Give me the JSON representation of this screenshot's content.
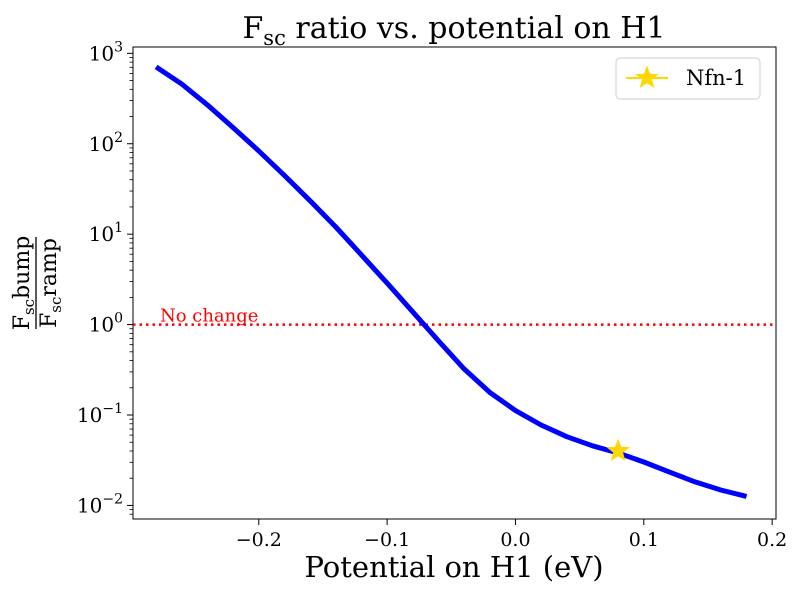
{
  "chart_data": {
    "type": "line",
    "title": {
      "base": "F",
      "sub": "sc",
      "rest": " ratio vs. potential on H1"
    },
    "xlabel": "Potential on H1 (eV)",
    "ylabel": {
      "numerator": {
        "base": "F",
        "sub": "sc",
        "rest": "bump"
      },
      "denominator": {
        "base": "F",
        "sub": "sc",
        "rest": "ramp"
      }
    },
    "xlim": [
      -0.298,
      0.203
    ],
    "ylim_log10": [
      -2.15,
      3.07
    ],
    "yscale": "log",
    "grid": false,
    "legend_position": "top-right",
    "x_ticks": [
      {
        "value": -0.2,
        "label": "−0.2"
      },
      {
        "value": -0.1,
        "label": "−0.1"
      },
      {
        "value": 0.0,
        "label": "0.0"
      },
      {
        "value": 0.1,
        "label": "0.1"
      },
      {
        "value": 0.2,
        "label": "0.2"
      }
    ],
    "y_ticks": [
      {
        "exp": -2,
        "label_base": "10",
        "label_exp": "−2"
      },
      {
        "exp": -1,
        "label_base": "10",
        "label_exp": "−1"
      },
      {
        "exp": 0,
        "label_base": "10",
        "label_exp": "0"
      },
      {
        "exp": 1,
        "label_base": "10",
        "label_exp": "1"
      },
      {
        "exp": 2,
        "label_base": "10",
        "label_exp": "2"
      },
      {
        "exp": 3,
        "label_base": "10",
        "label_exp": "3"
      }
    ],
    "series": [
      {
        "color": "#0000ff",
        "x": [
          -0.28,
          -0.26,
          -0.24,
          -0.22,
          -0.2,
          -0.18,
          -0.16,
          -0.14,
          -0.12,
          -0.1,
          -0.08,
          -0.06,
          -0.04,
          -0.02,
          0.0,
          0.02,
          0.04,
          0.06,
          0.08,
          0.1,
          0.12,
          0.14,
          0.16,
          0.18
        ],
        "y": [
          708,
          457,
          269,
          151,
          83.2,
          44.7,
          23.4,
          12.0,
          5.89,
          2.88,
          1.38,
          0.661,
          0.324,
          0.178,
          0.112,
          0.0776,
          0.0575,
          0.0457,
          0.038,
          0.0302,
          0.0234,
          0.0182,
          0.0148,
          0.0126
        ]
      }
    ],
    "reference_line": {
      "y": 1,
      "color": "#ff0000",
      "style": "dotted",
      "label": "No change"
    },
    "marker": {
      "label": "Nfn-1",
      "x": 0.08,
      "y": 0.04,
      "color": "#ffd700",
      "shape": "star"
    }
  }
}
